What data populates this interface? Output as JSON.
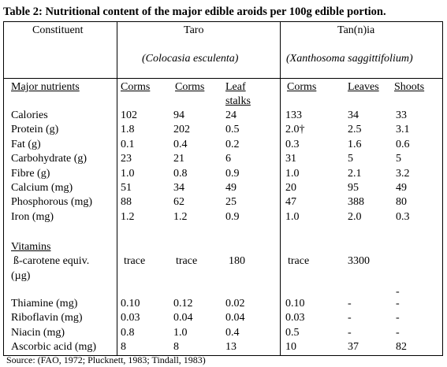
{
  "title": "Table 2: Nutritional content of the major edible aroids per 100g edible portion.",
  "headers": {
    "constituent": "Constituent",
    "taro": "Taro",
    "taro_sci": "(Colocasia esculenta)",
    "tannia": "Tan(n)ia",
    "tannia_sci": "(Xanthosoma saggittifolium)",
    "major_nutrients": "Major nutrients",
    "corms1": "Corms",
    "corms2": "Corms",
    "leaf_stalks_1": "Leaf",
    "leaf_stalks_2": "stalks",
    "corms3": "Corms",
    "leaves": "Leaves",
    "shoots": "Shoots"
  },
  "nutrients": [
    {
      "label": "Calories",
      "v": [
        "102",
        "94",
        "24",
        "133",
        "34",
        "33"
      ]
    },
    {
      "label": "Protein (g)",
      "v": [
        "1.8",
        "202",
        "0.5",
        "2.0†",
        "2.5",
        "3.1"
      ]
    },
    {
      "label": "Fat (g)",
      "v": [
        "0.1",
        "0.4",
        "0.2",
        "0.3",
        "1.6",
        "0.6"
      ]
    },
    {
      "label": "Carbohydrate (g)",
      "v": [
        "23",
        "21",
        "6",
        "31",
        "5",
        "5"
      ]
    },
    {
      "label": "Fibre (g)",
      "v": [
        "1.0",
        "0.8",
        "0.9",
        "1.0",
        "2.1",
        "3.2"
      ]
    },
    {
      "label": "Calcium (mg)",
      "v": [
        "51",
        "34",
        "49",
        "20",
        "95",
        "49"
      ]
    },
    {
      "label": "Phosphorous (mg)",
      "v": [
        "88",
        "62",
        "25",
        "47",
        "388",
        "80"
      ]
    },
    {
      "label": "Iron (mg)",
      "v": [
        "1.2",
        "1.2",
        "0.9",
        "1.0",
        "2.0",
        "0.3"
      ]
    }
  ],
  "vitamins_label": "Vitamins",
  "carotene": {
    "label1": "ß-carotene equiv.",
    "label2": "(µg)",
    "v": [
      "trace",
      "trace",
      "180",
      "trace",
      "3300",
      ""
    ]
  },
  "shoot_dash": "-",
  "vitamins": [
    {
      "label": "Thiamine (mg)",
      "v": [
        "0.10",
        "0.12",
        "0.02",
        "0.10",
        "-",
        "-"
      ]
    },
    {
      "label": "Riboflavin (mg)",
      "v": [
        "0.03",
        "0.04",
        "0.04",
        "0.03",
        "-",
        "-"
      ]
    },
    {
      "label": "Niacin (mg)",
      "v": [
        "0.8",
        "1.0",
        "0.4",
        "0.5",
        "-",
        "-"
      ]
    },
    {
      "label": "Ascorbic acid (mg)",
      "v": [
        "8",
        "8",
        "13",
        "10",
        "37",
        "82"
      ]
    }
  ],
  "source": "Source: (FAO, 1972; Plucknett, 1983; Tindall, 1983)"
}
